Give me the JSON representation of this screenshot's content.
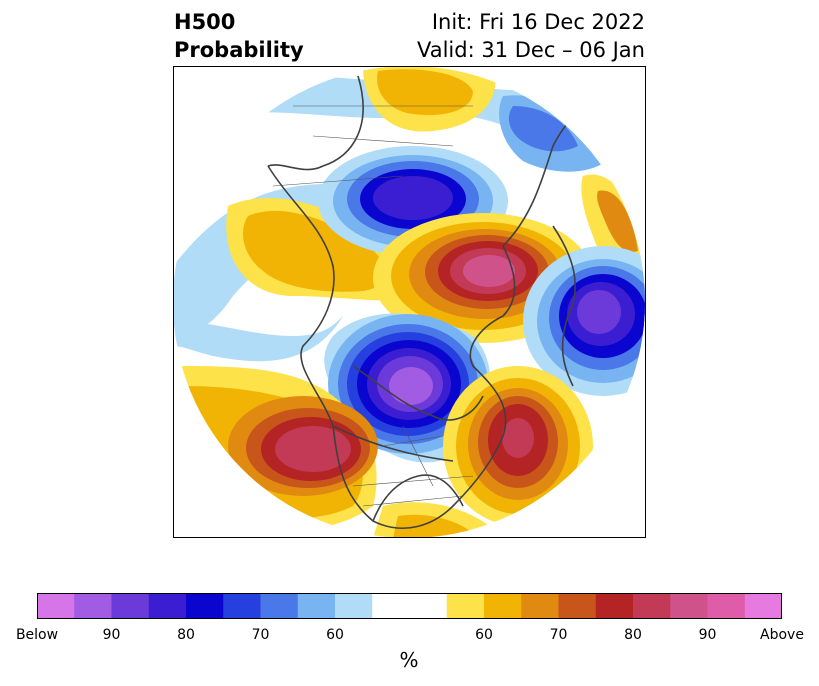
{
  "title": {
    "left_line1": "H500",
    "left_line2": "Probability",
    "right_line1": "Init: Fri 16 Dec 2022",
    "right_line2": "Valid: 31 Dec – 06 Jan"
  },
  "colorbar": {
    "unit": "%",
    "colors": [
      "#d575e8",
      "#a25be3",
      "#6b3ad9",
      "#3b1ed1",
      "#0a05cf",
      "#2640e0",
      "#4a78e8",
      "#78b4f2",
      "#b0dcf8",
      "#ffffff",
      "#ffffff",
      "#fde24a",
      "#f2b404",
      "#e08a12",
      "#c8561a",
      "#b52424",
      "#c23a55",
      "#d0528a",
      "#de5ca8",
      "#e77ae0"
    ],
    "ticks": [
      {
        "label": "Below",
        "index": 0
      },
      {
        "label": "90",
        "index": 2
      },
      {
        "label": "80",
        "index": 4
      },
      {
        "label": "70",
        "index": 6
      },
      {
        "label": "60",
        "index": 8
      },
      {
        "label": "60",
        "index": 12
      },
      {
        "label": "70",
        "index": 14
      },
      {
        "label": "80",
        "index": 16
      },
      {
        "label": "90",
        "index": 18
      },
      {
        "label": "Above",
        "index": 20
      }
    ]
  },
  "map": {
    "projection": "polar-stereographic",
    "background": "#ffffff",
    "border_color": "#000000",
    "coast_color": "#404040"
  }
}
